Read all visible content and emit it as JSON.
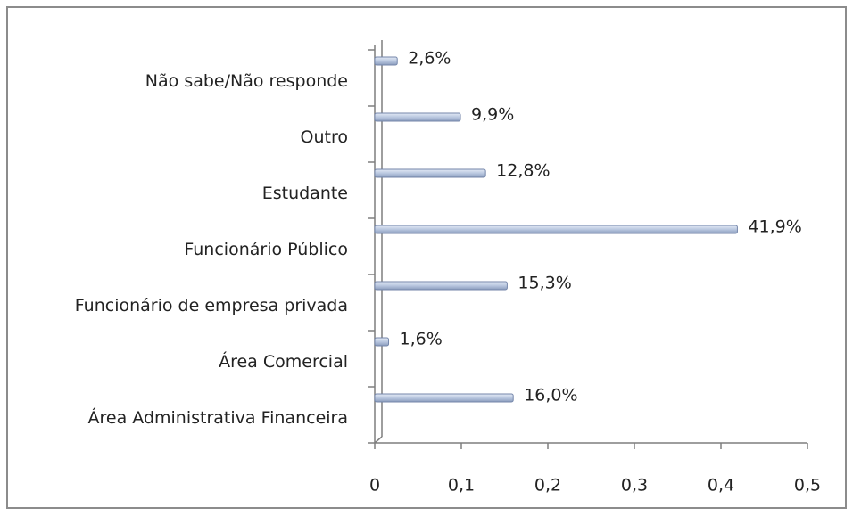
{
  "chart_data": {
    "type": "bar",
    "orientation": "horizontal",
    "categories": [
      "Não sabe/Não responde",
      "Outro",
      "Estudante",
      "Funcionário Público",
      "Funcionário de empresa privada",
      "Área Comercial",
      "Área Administrativa Financeira"
    ],
    "values": [
      0.026,
      0.099,
      0.128,
      0.419,
      0.153,
      0.016,
      0.16
    ],
    "value_labels": [
      "2,6%",
      "9,9%",
      "12,8%",
      "41,9%",
      "15,3%",
      "1,6%",
      "16,0%"
    ],
    "color": "#b9c7df",
    "xlim": [
      0,
      0.5
    ],
    "xticks": [
      0,
      {
        "value": 0.1,
        "label": "0,1"
      },
      {
        "value": 0.2,
        "label": "0,2"
      },
      {
        "value": 0.3,
        "label": "0,3"
      },
      {
        "value": 0.4,
        "label": "0,4"
      },
      {
        "value": 0.5,
        "label": "0,5"
      }
    ],
    "grid": false
  }
}
